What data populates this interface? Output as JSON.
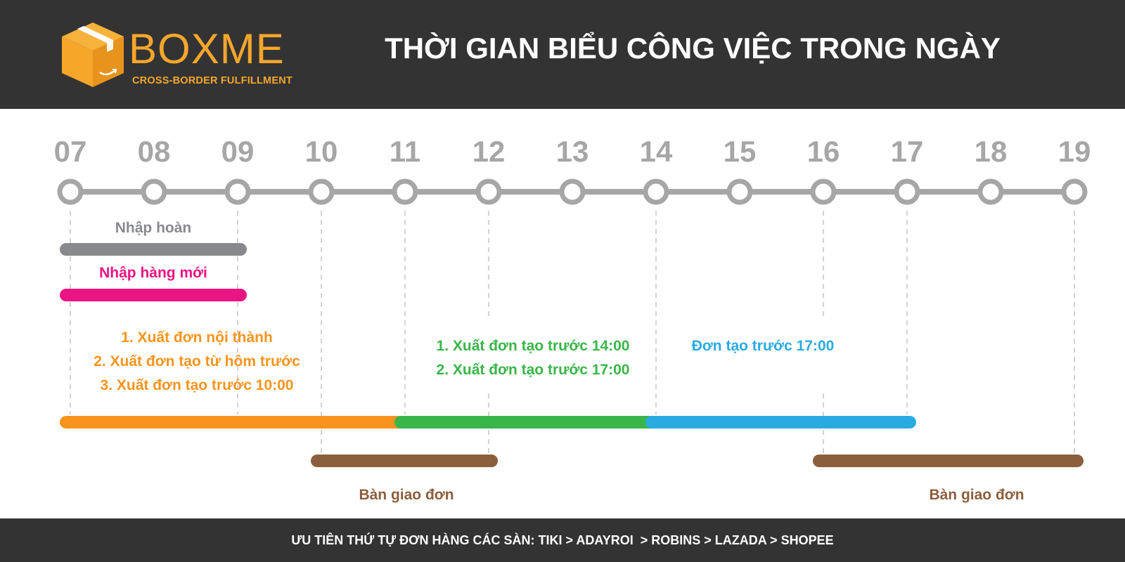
{
  "header": {
    "brand": "BOXME",
    "tagline": "CROSS-BORDER FULFILLMENT",
    "title": "THỜI GIAN BIỂU CÔNG VIỆC TRONG NGÀY"
  },
  "timeline": {
    "hours": [
      "07",
      "08",
      "09",
      "10",
      "11",
      "12",
      "13",
      "14",
      "15",
      "16",
      "17",
      "18",
      "19"
    ],
    "tasks": [
      {
        "id": "nhap-hoan",
        "start": 7,
        "end": 9,
        "color": "#88898d",
        "labels": [
          "Nhập hoàn"
        ]
      },
      {
        "id": "nhap-hang-moi",
        "start": 7,
        "end": 9,
        "color": "#ec1382",
        "labels": [
          "Nhập hàng mới"
        ]
      },
      {
        "id": "xuat-don-sang",
        "start": 7,
        "end": 11,
        "color": "#f7941d",
        "labels": [
          "1. Xuất đơn nội thành",
          "2. Xuất đơn tạo từ hôm trước",
          "3. Xuất đơn tạo trước 10:00"
        ]
      },
      {
        "id": "xuat-don-trua",
        "start": 11,
        "end": 14,
        "color": "#3ab54a",
        "labels": [
          "1. Xuất đơn tạo trước 14:00",
          "2. Xuất đơn tạo trước 17:00"
        ]
      },
      {
        "id": "don-chieu",
        "start": 14,
        "end": 17,
        "color": "#29abe2",
        "labels": [
          "Đơn tạo trước 17:00"
        ]
      },
      {
        "id": "ban-giao-1",
        "start": 10,
        "end": 12,
        "color": "#8b5e3c",
        "labels": [
          "Bàn giao đơn"
        ]
      },
      {
        "id": "ban-giao-2",
        "start": 16,
        "end": 19,
        "color": "#8b5e3c",
        "labels": [
          "Bàn giao đơn"
        ]
      }
    ]
  },
  "footer": {
    "text": "ƯU TIÊN THỨ TỰ ĐƠN HÀNG CÁC SÀN: TIKI > ADAYROI  > ROBINS > LAZADA > SHOPEE"
  },
  "colors": {
    "header_bg": "#333333",
    "brand_orange": "#f5a62b",
    "axis_gray": "#a6a6a6"
  }
}
